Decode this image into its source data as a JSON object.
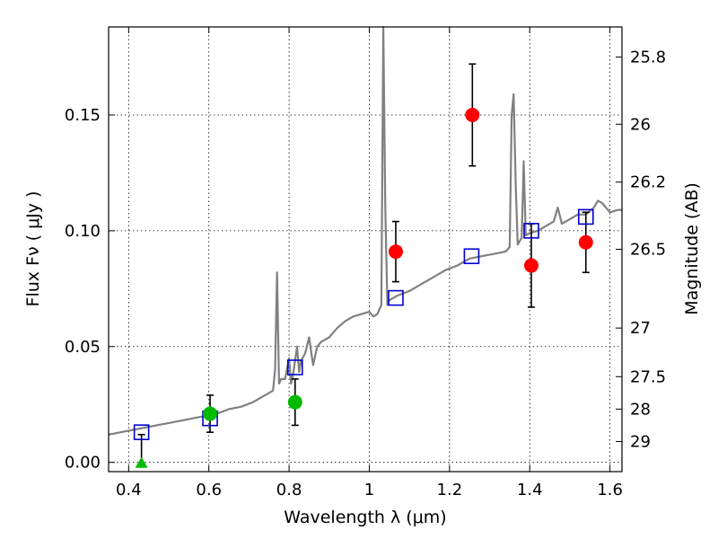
{
  "chart_data": {
    "type": "scatter",
    "xlabel": "Wavelength  λ (μm)",
    "ylabel": "Flux  Fν  ( μJy )",
    "ylabel_right": "Magnitude (AB)",
    "xlim": [
      0.35,
      1.63
    ],
    "ylim": [
      -0.004,
      0.188
    ],
    "x_ticks": [
      0.4,
      0.6,
      0.8,
      1.0,
      1.2,
      1.4,
      1.6
    ],
    "x_tick_labels": [
      "0.4",
      "0.6",
      "0.8",
      "1",
      "1.2",
      "1.4",
      "1.6"
    ],
    "y_ticks": [
      0.0,
      0.05,
      0.1,
      0.15
    ],
    "y_tick_labels": [
      "0.00",
      "0.05",
      "0.10",
      "0.15"
    ],
    "right_ticks": [
      {
        "label": "25.8",
        "flux": 0.175
      },
      {
        "label": "26",
        "flux": 0.146
      },
      {
        "label": "26.2",
        "flux": 0.121
      },
      {
        "label": "26.5",
        "flux": 0.092
      },
      {
        "label": "27",
        "flux": 0.058
      },
      {
        "label": "27.5",
        "flux": 0.037
      },
      {
        "label": "28",
        "flux": 0.023
      },
      {
        "label": "29",
        "flux": 0.009
      }
    ],
    "grid": true,
    "colors": {
      "model": "#808080",
      "model_photometry": "#0000cc",
      "detections_red": "#ff0000",
      "detections_green": "#00bb00",
      "error_bars": "#000000"
    },
    "series": [
      {
        "kind": "line",
        "points": [
          [
            0.35,
            0.012
          ],
          [
            0.38,
            0.013
          ],
          [
            0.41,
            0.014
          ],
          [
            0.44,
            0.015
          ],
          [
            0.47,
            0.016
          ],
          [
            0.5,
            0.017
          ],
          [
            0.53,
            0.018
          ],
          [
            0.56,
            0.019
          ],
          [
            0.59,
            0.02
          ],
          [
            0.62,
            0.021
          ],
          [
            0.65,
            0.023
          ],
          [
            0.68,
            0.024
          ],
          [
            0.71,
            0.026
          ],
          [
            0.74,
            0.029
          ],
          [
            0.76,
            0.031
          ],
          [
            0.765,
            0.04
          ],
          [
            0.77,
            0.082
          ],
          [
            0.775,
            0.034
          ],
          [
            0.78,
            0.036
          ],
          [
            0.79,
            0.036
          ],
          [
            0.8,
            0.045
          ],
          [
            0.805,
            0.034
          ],
          [
            0.81,
            0.038
          ],
          [
            0.82,
            0.05
          ],
          [
            0.825,
            0.039
          ],
          [
            0.83,
            0.044
          ],
          [
            0.84,
            0.047
          ],
          [
            0.85,
            0.054
          ],
          [
            0.86,
            0.042
          ],
          [
            0.87,
            0.05
          ],
          [
            0.88,
            0.052
          ],
          [
            0.9,
            0.054
          ],
          [
            0.92,
            0.058
          ],
          [
            0.94,
            0.061
          ],
          [
            0.96,
            0.063
          ],
          [
            0.98,
            0.064
          ],
          [
            1.0,
            0.065
          ],
          [
            1.01,
            0.063
          ],
          [
            1.02,
            0.064
          ],
          [
            1.03,
            0.068
          ],
          [
            1.035,
            0.19
          ],
          [
            1.04,
            0.11
          ],
          [
            1.045,
            0.068
          ],
          [
            1.05,
            0.07
          ],
          [
            1.07,
            0.072
          ],
          [
            1.1,
            0.074
          ],
          [
            1.13,
            0.077
          ],
          [
            1.16,
            0.08
          ],
          [
            1.19,
            0.083
          ],
          [
            1.22,
            0.085
          ],
          [
            1.25,
            0.088
          ],
          [
            1.28,
            0.089
          ],
          [
            1.31,
            0.09
          ],
          [
            1.34,
            0.091
          ],
          [
            1.35,
            0.093
          ],
          [
            1.355,
            0.15
          ],
          [
            1.36,
            0.159
          ],
          [
            1.365,
            0.12
          ],
          [
            1.37,
            0.094
          ],
          [
            1.38,
            0.097
          ],
          [
            1.385,
            0.13
          ],
          [
            1.39,
            0.098
          ],
          [
            1.4,
            0.099
          ],
          [
            1.42,
            0.1
          ],
          [
            1.44,
            0.102
          ],
          [
            1.46,
            0.104
          ],
          [
            1.47,
            0.11
          ],
          [
            1.48,
            0.103
          ],
          [
            1.5,
            0.105
          ],
          [
            1.52,
            0.107
          ],
          [
            1.54,
            0.107
          ],
          [
            1.56,
            0.11
          ],
          [
            1.57,
            0.113
          ],
          [
            1.58,
            0.112
          ],
          [
            1.6,
            0.108
          ],
          [
            1.62,
            0.109
          ],
          [
            1.63,
            0.109
          ]
        ]
      },
      {
        "kind": "open-squares",
        "points": [
          [
            0.432,
            0.013
          ],
          [
            0.603,
            0.019
          ],
          [
            0.815,
            0.041
          ],
          [
            1.066,
            0.071
          ],
          [
            1.255,
            0.089
          ],
          [
            1.404,
            0.1
          ],
          [
            1.54,
            0.106
          ]
        ]
      },
      {
        "kind": "red-circles",
        "points": [
          {
            "x": 1.066,
            "y": 0.091,
            "err": 0.013
          },
          {
            "x": 1.257,
            "y": 0.15,
            "err": 0.022
          },
          {
            "x": 1.404,
            "y": 0.085,
            "err": 0.018
          },
          {
            "x": 1.54,
            "y": 0.095,
            "err": 0.013
          }
        ]
      },
      {
        "kind": "green-circles",
        "points": [
          {
            "x": 0.603,
            "y": 0.021,
            "err": 0.008
          },
          {
            "x": 0.815,
            "y": 0.026,
            "err": 0.01
          }
        ]
      },
      {
        "kind": "green-triangle",
        "points": [
          {
            "x": 0.432,
            "y": 0.0,
            "err_up": 0.012
          }
        ]
      }
    ]
  }
}
